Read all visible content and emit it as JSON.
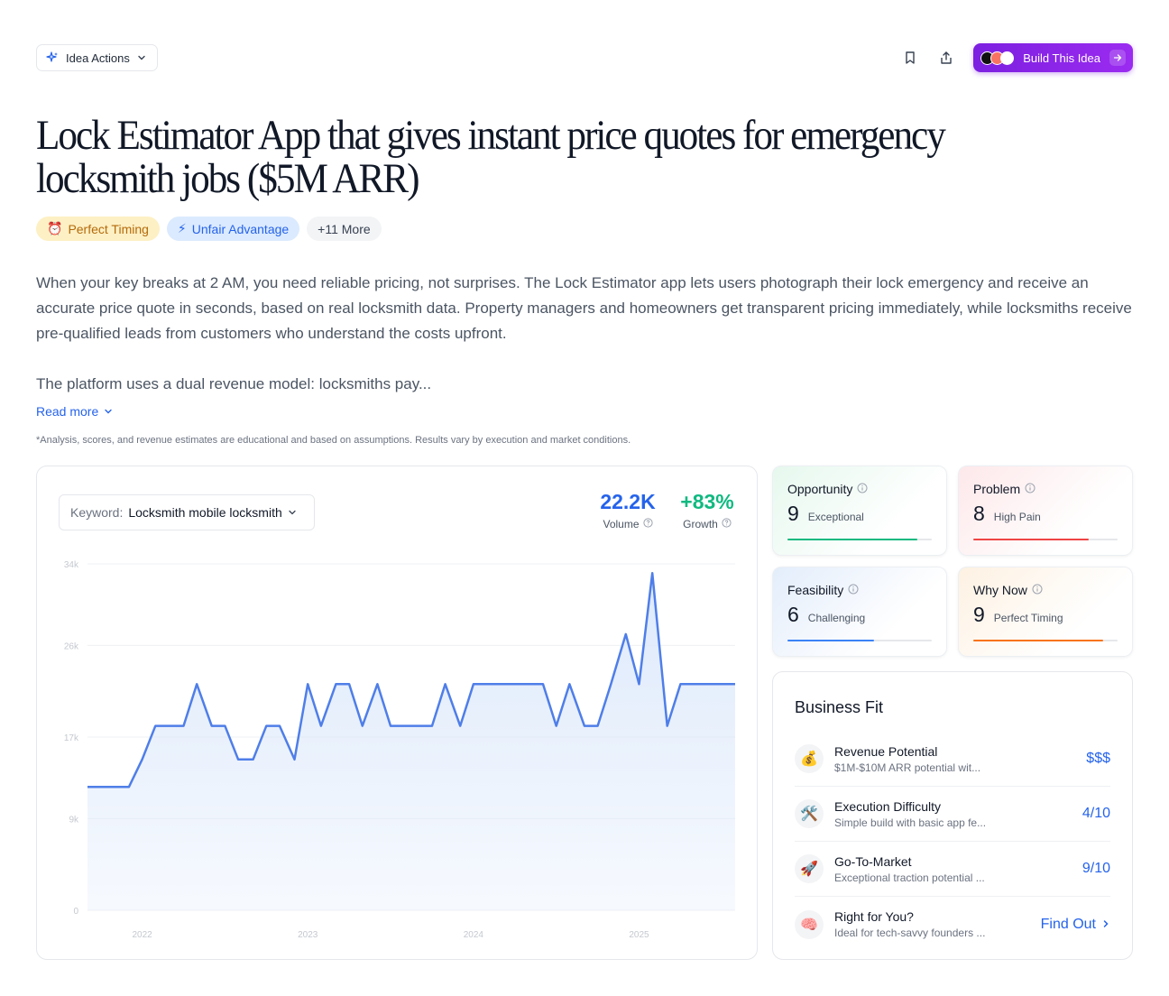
{
  "header": {
    "idea_actions_label": "Idea Actions",
    "build_label": "Build This Idea",
    "icons": [
      "sparkle-icon",
      "chevron-down-icon",
      "bookmark-icon",
      "share-icon",
      "arrow-right-icon"
    ]
  },
  "title": "Lock Estimator App that gives instant price quotes for emergency locksmith jobs ($5M ARR)",
  "tags": [
    {
      "icon": "⏰",
      "label": "Perfect Timing"
    },
    {
      "icon": "⚡",
      "label": "Unfair Advantage"
    },
    {
      "label": "+11 More"
    }
  ],
  "description": {
    "p1": "When your key breaks at 2 AM, you need reliable pricing, not surprises. The Lock Estimator app lets users photograph their lock emergency and receive an accurate price quote in seconds, based on real locksmith data. Property managers and homeowners get transparent pricing immediately, while locksmiths receive pre-qualified leads from customers who understand the costs upfront.",
    "p2": "The platform uses a dual revenue model: locksmiths pay..."
  },
  "read_more": "Read more",
  "disclaimer": "*Analysis, scores, and revenue estimates are educational and based on assumptions. Results vary by execution and market conditions.",
  "keyword": {
    "label": "Keyword:",
    "value": "Locksmith mobile locksmith"
  },
  "stats": {
    "volume": {
      "value": "22.2K",
      "label": "Volume"
    },
    "growth": {
      "value": "+83%",
      "label": "Growth"
    }
  },
  "chart_data": {
    "type": "area",
    "title": "",
    "xlabel": "",
    "ylabel": "",
    "x_ticks": [
      "2022",
      "2023",
      "2024",
      "2025"
    ],
    "y_ticks": [
      "34k",
      "26k",
      "17k",
      "9k",
      "0"
    ],
    "y_tick_values": [
      34000,
      26000,
      17000,
      9000,
      0
    ],
    "ylim": [
      0,
      34000
    ],
    "xlim": [
      2021.67,
      2025.58
    ],
    "grid": true,
    "color": "#4f7ee8",
    "fill": "#dde9fb",
    "series": [
      {
        "x": [
          2021.67,
          2021.75,
          2021.83,
          2021.92,
          2022.0,
          2022.08,
          2022.17,
          2022.25,
          2022.33,
          2022.42,
          2022.5,
          2022.58,
          2022.67,
          2022.75,
          2022.83,
          2022.92,
          2023.0,
          2023.08,
          2023.17,
          2023.25,
          2023.33,
          2023.42,
          2023.5,
          2023.58,
          2023.67,
          2023.75,
          2023.83,
          2023.92,
          2024.0,
          2024.08,
          2024.17,
          2024.25,
          2024.33,
          2024.42,
          2024.5,
          2024.58,
          2024.67,
          2024.75,
          2024.83,
          2024.92,
          2025.0,
          2025.08,
          2025.17,
          2025.25,
          2025.33,
          2025.42,
          2025.5,
          2025.58
        ],
        "values": [
          12100,
          12100,
          12100,
          12100,
          14800,
          18100,
          18100,
          18100,
          22200,
          18100,
          18100,
          14800,
          14800,
          18100,
          18100,
          14800,
          22200,
          18100,
          22200,
          22200,
          18100,
          22200,
          18100,
          18100,
          18100,
          18100,
          22200,
          18100,
          22200,
          22200,
          22200,
          22200,
          22200,
          22200,
          18100,
          22200,
          18100,
          18100,
          22200,
          27100,
          22200,
          33100,
          18100,
          22200,
          22200,
          22200,
          22200,
          22200
        ]
      }
    ]
  },
  "scores": [
    {
      "title": "Opportunity",
      "value": "9",
      "sub": "Exceptional",
      "fill": 0.9,
      "color": "#10b981"
    },
    {
      "title": "Problem",
      "value": "8",
      "sub": "High Pain",
      "fill": 0.8,
      "color": "#ef4444"
    },
    {
      "title": "Feasibility",
      "value": "6",
      "sub": "Challenging",
      "fill": 0.6,
      "color": "#3b82f6"
    },
    {
      "title": "Why Now",
      "value": "9",
      "sub": "Perfect Timing",
      "fill": 0.9,
      "color": "#f97316"
    }
  ],
  "business_fit": {
    "title": "Business Fit",
    "rows": [
      {
        "icon": "💰",
        "title": "Revenue Potential",
        "desc": "$1M-$10M ARR potential wit...",
        "value": "$$$"
      },
      {
        "icon": "🛠️",
        "title": "Execution Difficulty",
        "desc": "Simple build with basic app fe...",
        "value": "4/10"
      },
      {
        "icon": "🚀",
        "title": "Go-To-Market",
        "desc": "Exceptional traction potential ...",
        "value": "9/10"
      },
      {
        "icon": "🧠",
        "title": "Right for You?",
        "desc": "Ideal for tech-savvy founders ...",
        "value": "Find Out"
      }
    ]
  }
}
